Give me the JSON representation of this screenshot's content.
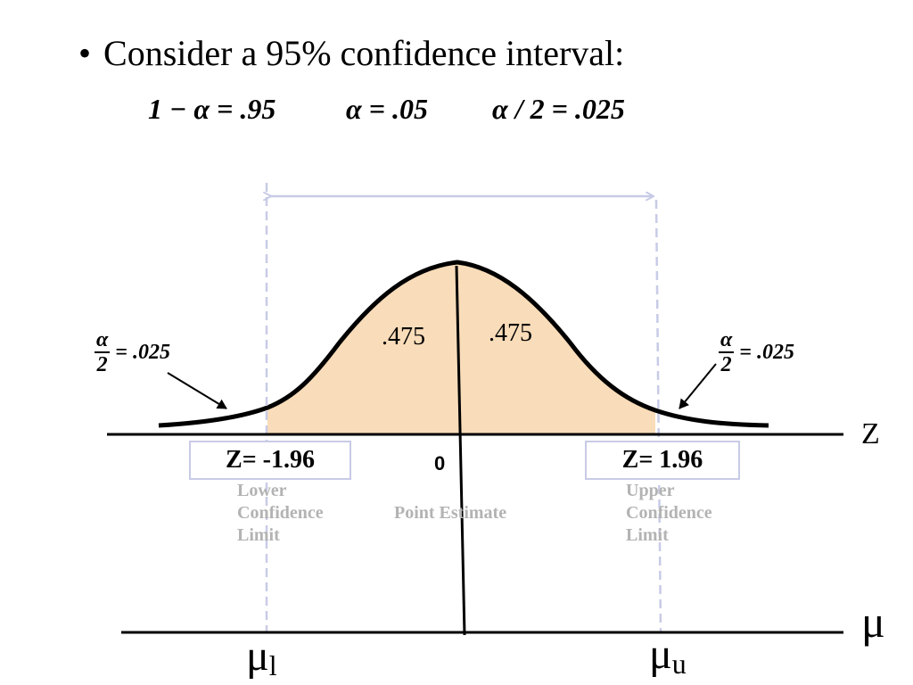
{
  "bullet": {
    "symbol": "•",
    "text": "Consider a 95% confidence interval:"
  },
  "formulas": [
    "1 − α = .95",
    "α = .05",
    "α / 2 = .025"
  ],
  "area_labels": {
    "left_center": ".475",
    "right_center": ".475"
  },
  "tail_labels": {
    "left": {
      "numerator": "α",
      "denominator": "2",
      "value": "= .025"
    },
    "right": {
      "numerator": "α",
      "denominator": "2",
      "value": "= .025"
    }
  },
  "z_axis": {
    "name": "Z",
    "lower": "Z= -1.96",
    "center": "0",
    "upper": "Z= 1.96"
  },
  "limits": {
    "lower": [
      "Lower",
      "Confidence",
      "Limit"
    ],
    "point": "Point Estimate",
    "upper": [
      "Upper",
      "Confidence",
      "Limit"
    ]
  },
  "mu_axis": {
    "name": "μ",
    "lower_symbol": "μ",
    "lower_sub": "l",
    "upper_symbol": "μ",
    "upper_sub": "u"
  },
  "colors": {
    "shaded_area": "#f9dcb9",
    "dashed_lines": "#c8cbe6",
    "limit_text": "#b3b3b3"
  }
}
